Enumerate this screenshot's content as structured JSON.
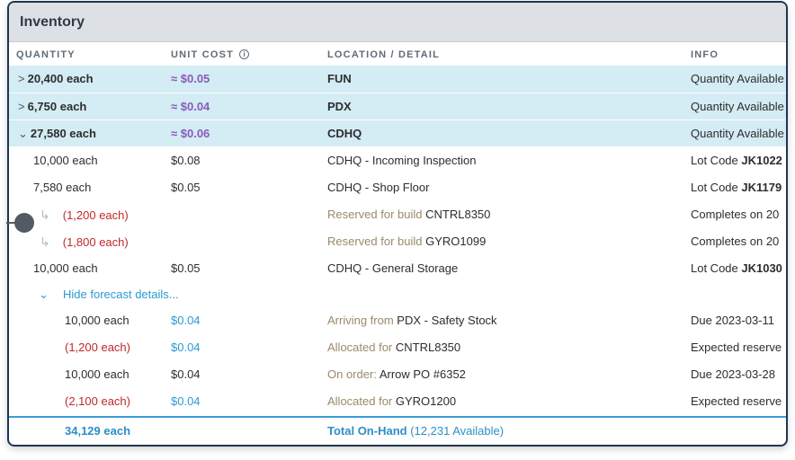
{
  "card": {
    "title": "Inventory"
  },
  "headers": {
    "quantity": "QUANTITY",
    "unit_cost": "UNIT COST",
    "location": "LOCATION / DETAIL",
    "info": "INFO"
  },
  "groups": [
    {
      "qty": "20,400 each",
      "cost": "≈ $0.05",
      "location": "FUN",
      "info": "Quantity Available",
      "expanded": false
    },
    {
      "qty": "6,750 each",
      "cost": "≈ $0.04",
      "location": "PDX",
      "info": "Quantity Available",
      "expanded": false
    },
    {
      "qty": "27,580 each",
      "cost": "≈ $0.06",
      "location": "CDHQ",
      "info": "Quantity Available",
      "expanded": true
    }
  ],
  "detail_rows": [
    {
      "qty": "10,000 each",
      "cost": "$0.08",
      "location": "CDHQ - Incoming Inspection",
      "info_prefix": "Lot Code ",
      "info_bold": "JK1022"
    },
    {
      "qty": "7,580 each",
      "cost": "$0.05",
      "location": "CDHQ - Shop Floor",
      "info_prefix": "Lot Code ",
      "info_bold": "JK1179"
    }
  ],
  "reserved_rows": [
    {
      "qty": "(1,200 each)",
      "prefix": "Reserved for build ",
      "target": "CNTRL8350",
      "info": "Completes on 20"
    },
    {
      "qty": "(1,800 each)",
      "prefix": "Reserved for build ",
      "target": "GYRO1099",
      "info": "Completes on 20"
    }
  ],
  "storage_row": {
    "qty": "10,000 each",
    "cost": "$0.05",
    "location": "CDHQ - General Storage",
    "info_prefix": "Lot Code ",
    "info_bold": "JK1030"
  },
  "forecast": {
    "toggle_label": "Hide forecast details..."
  },
  "forecast_rows": [
    {
      "qty": "10,000 each",
      "cost": "$0.04",
      "prefix": "Arriving from ",
      "target": "PDX - Safety Stock",
      "info": "Due 2023-03-11"
    },
    {
      "qty": "(1,200 each)",
      "cost": "$0.04",
      "prefix": "Allocated for ",
      "target": "CNTRL8350",
      "info": "Expected reserve"
    },
    {
      "qty": "10,000 each",
      "cost": "$0.04",
      "prefix": "On order: ",
      "target": "Arrow PO #6352",
      "info": "Due 2023-03-28"
    },
    {
      "qty": "(2,100 each)",
      "cost": "$0.04",
      "prefix": "Allocated for ",
      "target": "GYRO1200",
      "info": "Expected reserve"
    }
  ],
  "total": {
    "qty": "34,129 each",
    "label": "Total On-Hand",
    "available": "(12,231 Available)"
  },
  "colors": {
    "group_bg": "#d4ecf4",
    "approx_cost": "#8a5bb8",
    "negative": "#c0282c",
    "link": "#2c9ad1",
    "muted_prefix": "#9a8a6a"
  },
  "icons": {
    "collapsed": "chevron-right-icon",
    "expanded": "chevron-down-icon",
    "sub_item": "corner-down-right-icon",
    "info": "info-circle-icon"
  }
}
